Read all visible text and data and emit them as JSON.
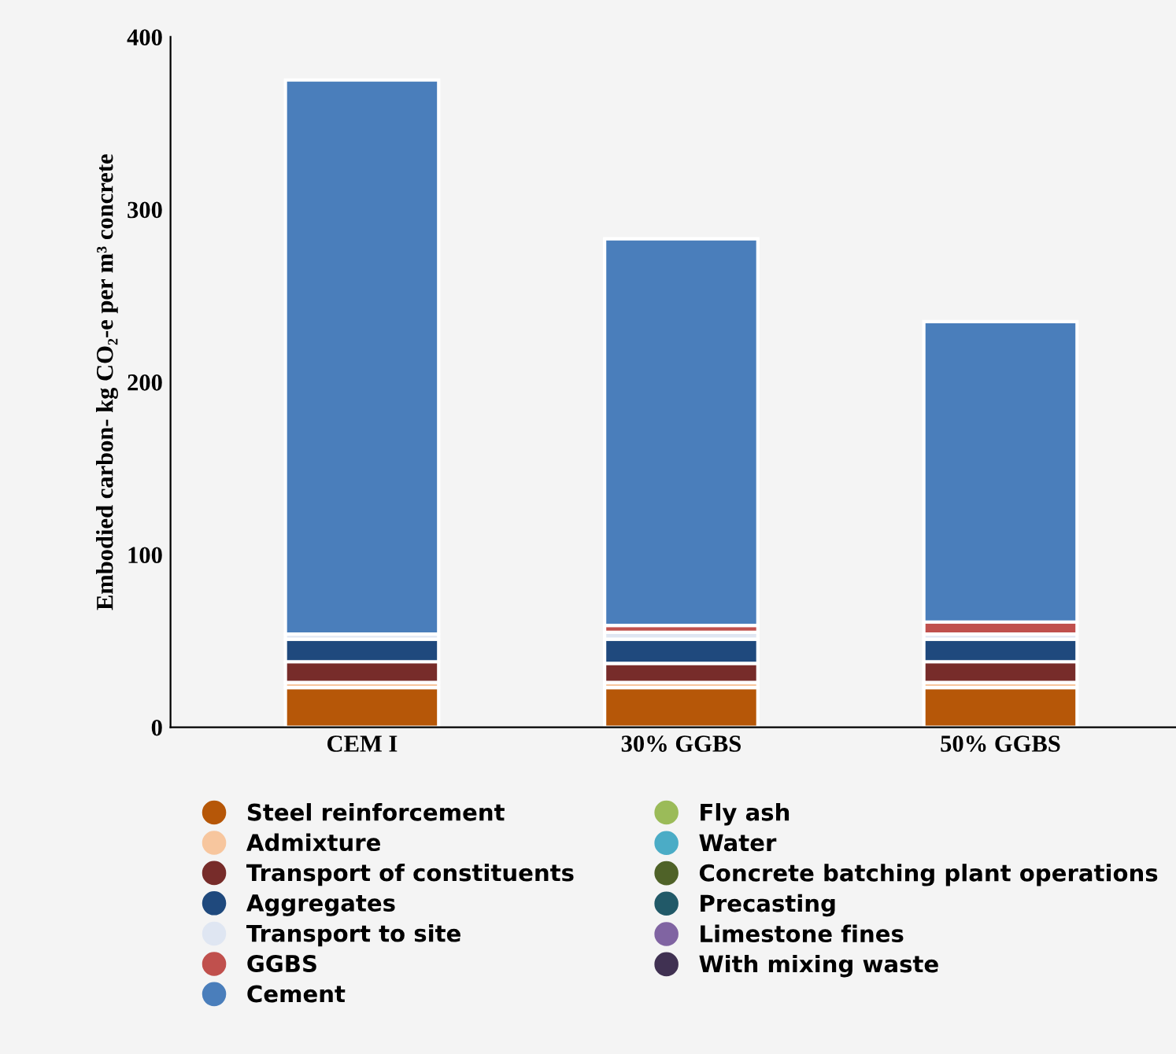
{
  "chart_data": {
    "type": "bar",
    "stacked": true,
    "ylabel": "Embodied carbon- kg CO₂-e per m³ concrete",
    "categories": [
      "CEM I",
      "30% GGBS",
      "50% GGBS"
    ],
    "ylim": [
      0,
      400
    ],
    "yticks": [
      0,
      100,
      200,
      300,
      400
    ],
    "grid": false,
    "legend": "bottom",
    "series": [
      {
        "name": "Steel reinforcement",
        "color": "#b65708",
        "values": [
          23,
          23,
          23
        ]
      },
      {
        "name": "Admixture",
        "color": "#f7c69e",
        "values": [
          3,
          3,
          3
        ]
      },
      {
        "name": "Transport of constituents",
        "color": "#772c2a",
        "values": [
          12,
          11,
          12
        ]
      },
      {
        "name": "Aggregates",
        "color": "#1f497d",
        "values": [
          13,
          14,
          13
        ]
      },
      {
        "name": "Transport to site",
        "color": "#dfe6f2",
        "values": [
          3,
          4,
          3
        ]
      },
      {
        "name": "GGBS",
        "color": "#c0504d",
        "values": [
          null,
          4,
          7
        ]
      },
      {
        "name": "Cement",
        "color": "#4a7ebb",
        "values": [
          321,
          224,
          174
        ]
      },
      {
        "name": "Fly ash",
        "color": "#9bbb59",
        "values": [
          null,
          null,
          null
        ]
      },
      {
        "name": "Water",
        "color": "#4bacc6",
        "values": [
          null,
          null,
          null
        ]
      },
      {
        "name": "Concrete batching plant operations",
        "color": "#4f6228",
        "values": [
          null,
          null,
          null
        ]
      },
      {
        "name": "Precasting",
        "color": "#215968",
        "values": [
          null,
          null,
          null
        ]
      },
      {
        "name": "Limestone fines",
        "color": "#8064a2",
        "values": [
          null,
          null,
          null
        ]
      },
      {
        "name": "With mixing waste",
        "color": "#403152",
        "values": [
          null,
          null,
          null
        ]
      }
    ]
  }
}
